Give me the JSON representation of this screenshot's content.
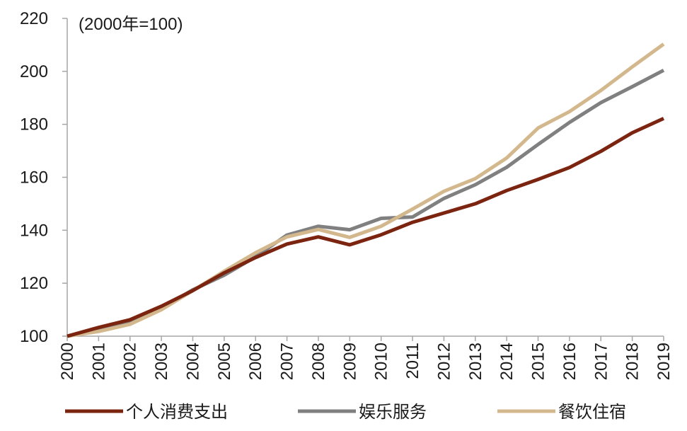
{
  "chart_data": {
    "type": "line",
    "title": "",
    "annotation": "(2000年=100)",
    "xlabel": "",
    "ylabel": "",
    "x": [
      "2000",
      "2001",
      "2002",
      "2003",
      "2004",
      "2005",
      "2006",
      "2007",
      "2008",
      "2009",
      "2010",
      "2011",
      "2012",
      "2013",
      "2014",
      "2015",
      "2016",
      "2017",
      "2018",
      "2019"
    ],
    "ylim": [
      100,
      220
    ],
    "yticks": [
      100,
      120,
      140,
      160,
      180,
      200,
      220
    ],
    "grid": false,
    "legend_position": "bottom",
    "series": [
      {
        "name": "个人消费支出",
        "color": "#7b2410",
        "values": [
          100,
          103.3,
          106.2,
          111.3,
          117.2,
          123.9,
          129.7,
          134.8,
          137.5,
          134.5,
          138.3,
          143,
          146.5,
          150,
          155,
          159.2,
          163.7,
          169.8,
          176.8,
          182.2
        ]
      },
      {
        "name": "娱乐服务",
        "color": "#808080",
        "values": [
          100,
          102.4,
          105.1,
          110.5,
          117.5,
          123,
          130,
          138.2,
          141.5,
          140.2,
          144.5,
          145,
          152,
          157.2,
          163.8,
          172.4,
          180.7,
          188.2,
          194.2,
          200.4
        ]
      },
      {
        "name": "餐饮住宿",
        "color": "#d4b88d",
        "values": [
          100,
          101.8,
          104.5,
          110,
          117.2,
          124.5,
          131.5,
          137.5,
          140.3,
          137.3,
          141.5,
          148,
          154.7,
          159.5,
          167.3,
          178.6,
          184.8,
          192.8,
          201.7,
          210.3
        ]
      }
    ]
  }
}
